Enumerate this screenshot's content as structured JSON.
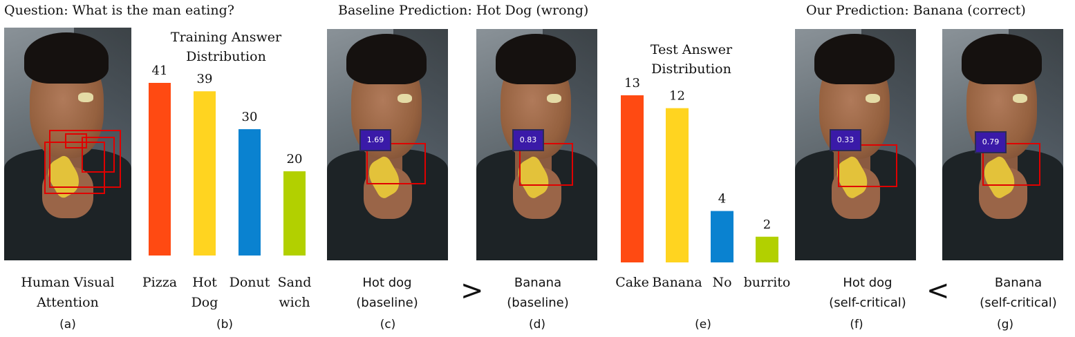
{
  "headers": {
    "question": "Question: What is the man eating?",
    "baseline": "Baseline Prediction: Hot Dog (wrong)",
    "ours": "Our Prediction: Banana (correct)"
  },
  "panels": [
    {
      "letter": "(a)",
      "caption_line1": "Human Visual",
      "caption_line2": "Attention"
    },
    {
      "letter": "(b)"
    },
    {
      "letter": "(c)",
      "caption_line1": "Hot dog",
      "caption_line2": "(baseline)",
      "score": "1.69"
    },
    {
      "letter": "(d)",
      "caption_line1": "Banana",
      "caption_line2": "(baseline)",
      "score": "0.83"
    },
    {
      "letter": "(e)"
    },
    {
      "letter": "(f)",
      "caption_line1": "Hot dog",
      "caption_line2": "(self-critical)",
      "score": "0.33"
    },
    {
      "letter": "(g)",
      "caption_line1": "Banana",
      "caption_line2": "(self-critical)",
      "score": "0.79"
    }
  ],
  "comparisons": {
    "baseline": ">",
    "ours": "<"
  },
  "chart_data": [
    {
      "type": "bar",
      "title_line1": "Training Answer",
      "title_line2": "Distribution",
      "categories": [
        "Pizza",
        "Hot Dog",
        "Donut",
        "Sandwich"
      ],
      "category_lines": [
        [
          "Pizza"
        ],
        [
          "Hot",
          "Dog"
        ],
        [
          "Donut"
        ],
        [
          "Sand",
          "wich"
        ]
      ],
      "values": [
        41,
        39,
        30,
        20
      ],
      "colors": [
        "#ff4a12",
        "#ffd420",
        "#0a82d0",
        "#b2d000"
      ],
      "ylim": [
        0,
        41
      ]
    },
    {
      "type": "bar",
      "title_line1": "Test Answer",
      "title_line2": "Distribution",
      "categories": [
        "Cake",
        "Banana",
        "No",
        "burrito"
      ],
      "category_lines": [
        [
          "Cake"
        ],
        [
          "Banana"
        ],
        [
          "No"
        ],
        [
          "burrito"
        ]
      ],
      "values": [
        13,
        12,
        4,
        2
      ],
      "colors": [
        "#ff4a12",
        "#ffd420",
        "#0a82d0",
        "#b2d000"
      ],
      "ylim": [
        0,
        13
      ]
    }
  ]
}
